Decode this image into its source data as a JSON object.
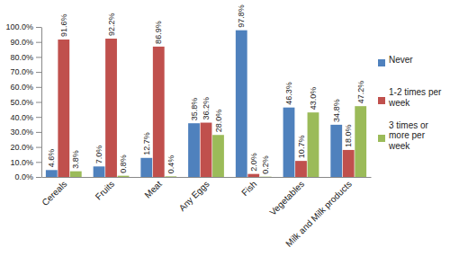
{
  "chart_data": {
    "type": "bar",
    "categories": [
      "Cereals",
      "Fruits",
      "Meat",
      "Any Eggs",
      "Fish",
      "Vegetables",
      "Milk and Milk products"
    ],
    "series": [
      {
        "name": "Never",
        "color": "#4f81bd",
        "values": [
          4.6,
          7.0,
          12.7,
          35.8,
          97.8,
          46.3,
          34.8
        ],
        "value_labels": [
          "4.6%",
          "7.0%",
          "12.7%",
          "35.8%",
          "97.8%",
          "46.3%",
          "34.8%"
        ]
      },
      {
        "name": "1-2 times per week",
        "color": "#c0504d",
        "values": [
          91.6,
          92.2,
          86.9,
          36.2,
          2.0,
          10.7,
          18.0
        ],
        "value_labels": [
          "91.6%",
          "92.2%",
          "86.9%",
          "36.2%",
          "2.0%",
          "10.7%",
          "18.0%"
        ]
      },
      {
        "name": "3 times or more per week",
        "color": "#9bbb59",
        "values": [
          3.8,
          0.8,
          0.4,
          28.0,
          0.2,
          43.0,
          47.2
        ],
        "value_labels": [
          "3.8%",
          "0.8%",
          "0.4%",
          "28.0%",
          "0.2%",
          "43.0%",
          "47.2%"
        ]
      }
    ],
    "ylim": [
      0,
      100
    ],
    "yticks": [
      {
        "value": 0,
        "label": "0.0%"
      },
      {
        "value": 10,
        "label": "10.0%"
      },
      {
        "value": 20,
        "label": "20.0%"
      },
      {
        "value": 30,
        "label": "30.0%"
      },
      {
        "value": 40,
        "label": "40.0%"
      },
      {
        "value": 50,
        "label": "50.0%"
      },
      {
        "value": 60,
        "label": "60.0%"
      },
      {
        "value": 70,
        "label": "70.0%"
      },
      {
        "value": 80,
        "label": "80.0%"
      },
      {
        "value": 90,
        "label": "90.0%"
      },
      {
        "value": 100,
        "label": "100.0%"
      }
    ],
    "grid": false,
    "legend": "right",
    "data_labels": true
  }
}
